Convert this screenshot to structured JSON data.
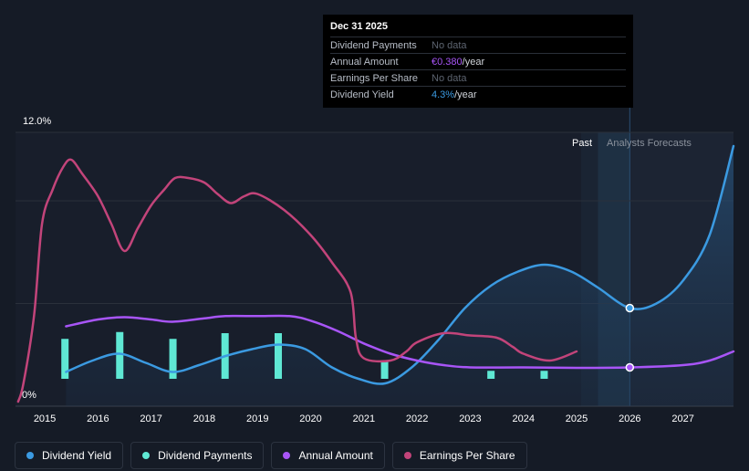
{
  "tooltip": {
    "date": "Dec 31 2025",
    "rows": [
      {
        "label": "Dividend Payments",
        "value": "No data",
        "unit": ""
      },
      {
        "label": "Annual Amount",
        "value": "€0.380",
        "unit": "/year"
      },
      {
        "label": "Earnings Per Share",
        "value": "No data",
        "unit": ""
      },
      {
        "label": "Dividend Yield",
        "value": "4.3%",
        "unit": "/year"
      }
    ]
  },
  "regions": {
    "past": "Past",
    "forecast": "Analysts Forecasts"
  },
  "legend": [
    {
      "label": "Dividend Yield",
      "color": "#3b9ae1"
    },
    {
      "label": "Dividend Payments",
      "color": "#5fe8d4"
    },
    {
      "label": "Annual Amount",
      "color": "#a855f7"
    },
    {
      "label": "Earnings Per Share",
      "color": "#c2447a"
    }
  ],
  "chart_data": {
    "type": "line",
    "title": "",
    "xlabel": "",
    "ylabel": "",
    "y_tick_labels": [
      "12.0%",
      "0%"
    ],
    "ylim": [
      0,
      12
    ],
    "xlim": [
      2014.45,
      2027.95
    ],
    "x_tick_labels": [
      "2015",
      "2016",
      "2017",
      "2018",
      "2019",
      "2020",
      "2021",
      "2022",
      "2023",
      "2024",
      "2025",
      "2026",
      "2027"
    ],
    "x_ticks": [
      2015,
      2016,
      2017,
      2018,
      2019,
      2020,
      2021,
      2022,
      2023,
      2024,
      2025,
      2026,
      2027
    ],
    "forecast_start": 2026.0,
    "highlight_band": [
      2025.4,
      2026.0
    ],
    "grid": true,
    "legend_position": "bottom-left",
    "series": [
      {
        "name": "Dividend Yield",
        "color": "#3b9ae1",
        "style": "area",
        "x": [
          2015.4,
          2015.9,
          2016.4,
          2016.9,
          2017.4,
          2017.9,
          2018.4,
          2018.9,
          2019.4,
          2019.9,
          2020.4,
          2020.9,
          2021.4,
          2021.9,
          2022.4,
          2022.9,
          2023.4,
          2023.9,
          2024.4,
          2024.9,
          2025.4,
          2026.0,
          2026.5,
          2027.0,
          2027.5,
          2027.95
        ],
        "y": [
          1.5,
          2.0,
          2.3,
          1.9,
          1.5,
          1.8,
          2.2,
          2.5,
          2.7,
          2.5,
          1.7,
          1.2,
          1.0,
          1.7,
          2.9,
          4.3,
          5.3,
          5.9,
          6.2,
          5.9,
          5.2,
          4.3,
          4.5,
          5.5,
          7.5,
          11.4
        ],
        "marker": {
          "x": 2026.0,
          "y": 4.3
        }
      },
      {
        "name": "Dividend Payments",
        "color": "#5fe8d4",
        "style": "bar",
        "x": [
          2015.38,
          2016.41,
          2017.41,
          2018.39,
          2019.39,
          2021.39,
          2023.39,
          2024.39
        ],
        "base": 1.2,
        "y": [
          2.95,
          3.25,
          2.95,
          3.2,
          3.2,
          2.0,
          1.55,
          1.55
        ]
      },
      {
        "name": "Annual Amount",
        "color": "#a855f7",
        "style": "line",
        "x": [
          2015.4,
          2016.0,
          2016.5,
          2017.0,
          2017.4,
          2018.0,
          2018.4,
          2019.0,
          2019.6,
          2020.0,
          2020.5,
          2021.0,
          2021.5,
          2022.0,
          2022.5,
          2023.0,
          2024.0,
          2025.0,
          2026.0,
          2027.0,
          2027.5,
          2027.95
        ],
        "y": [
          3.5,
          3.8,
          3.9,
          3.8,
          3.7,
          3.85,
          3.95,
          3.95,
          3.95,
          3.75,
          3.3,
          2.75,
          2.3,
          2.0,
          1.8,
          1.7,
          1.7,
          1.68,
          1.7,
          1.8,
          2.0,
          2.4
        ],
        "marker": {
          "x": 2026.0,
          "y": 1.7
        }
      },
      {
        "name": "Earnings Per Share",
        "color": "#c2447a",
        "style": "line",
        "x": [
          2014.5,
          2014.6,
          2014.8,
          2014.95,
          2015.15,
          2015.35,
          2015.5,
          2015.7,
          2016.0,
          2016.25,
          2016.5,
          2016.75,
          2017.0,
          2017.25,
          2017.45,
          2017.7,
          2018.0,
          2018.25,
          2018.5,
          2018.75,
          2019.0,
          2019.5,
          2020.0,
          2020.4,
          2020.75,
          2020.85,
          2021.0,
          2021.5,
          2021.8,
          2022.0,
          2022.5,
          2023.0,
          2023.5,
          2023.8,
          2024.0,
          2024.5,
          2025.0
        ],
        "y": [
          0.2,
          1.0,
          4.0,
          8.0,
          9.5,
          10.5,
          10.8,
          10.2,
          9.2,
          8.0,
          6.8,
          7.8,
          8.8,
          9.5,
          10.0,
          10.0,
          9.8,
          9.3,
          8.9,
          9.2,
          9.3,
          8.6,
          7.5,
          6.3,
          5.0,
          3.0,
          2.1,
          2.0,
          2.4,
          2.8,
          3.2,
          3.1,
          3.0,
          2.6,
          2.3,
          2.0,
          2.4
        ]
      }
    ]
  }
}
